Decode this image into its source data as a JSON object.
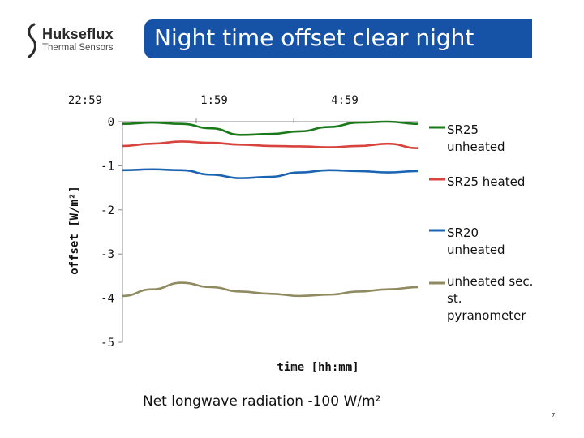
{
  "logo": {
    "name": "Hukseflux",
    "subtitle": "Thermal Sensors"
  },
  "slide": {
    "title": "Night time offset clear night",
    "footer": "Net longwave radiation -100 W/m²",
    "page_number": "7"
  },
  "colors": {
    "title_bg": "#1652a6",
    "series": [
      "#1a7a1a",
      "#d8433d",
      "#1b64b3",
      "#8f8a5f"
    ]
  },
  "chart_data": {
    "type": "line",
    "xlabel": "time [hh:mm]",
    "ylabel": "offset [W/m²]",
    "x_tick_labels": [
      "22:59",
      "1:59",
      "4:59"
    ],
    "x_ticks_position": "top",
    "xlim": [
      0,
      1
    ],
    "ylim": [
      -5,
      0
    ],
    "y_ticks": [
      0,
      -1,
      -2,
      -3,
      -4,
      -5
    ],
    "grid": false,
    "legend_position": "right",
    "x": [
      0.0,
      0.1,
      0.2,
      0.3,
      0.4,
      0.5,
      0.6,
      0.7,
      0.8,
      0.9,
      1.0
    ],
    "series": [
      {
        "name": "SR25 unheated",
        "values": [
          -0.05,
          -0.02,
          -0.05,
          -0.15,
          -0.3,
          -0.28,
          -0.22,
          -0.12,
          -0.02,
          0.0,
          -0.05
        ]
      },
      {
        "name": "SR25 heated",
        "values": [
          -0.55,
          -0.5,
          -0.45,
          -0.48,
          -0.52,
          -0.55,
          -0.56,
          -0.58,
          -0.55,
          -0.5,
          -0.6
        ]
      },
      {
        "name": "SR20 unheated",
        "values": [
          -1.1,
          -1.08,
          -1.1,
          -1.2,
          -1.28,
          -1.25,
          -1.15,
          -1.1,
          -1.12,
          -1.15,
          -1.12
        ]
      },
      {
        "name": "unheated sec. st. pyranometer",
        "values": [
          -3.95,
          -3.8,
          -3.65,
          -3.75,
          -3.85,
          -3.9,
          -3.95,
          -3.92,
          -3.85,
          -3.8,
          -3.75
        ]
      }
    ]
  }
}
